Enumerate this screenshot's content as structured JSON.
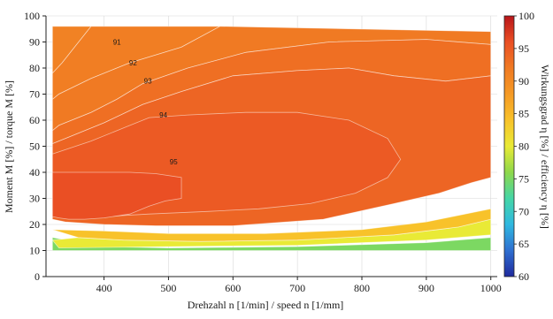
{
  "chart_data": {
    "type": "heatmap",
    "title": "",
    "xlabel": "Drehzahl n [1/min] / speed n [1/mm]",
    "ylabel": "Moment M [%] / torque M [%]",
    "colorbar_label": "Wirkungsgrad η [%] / efficiency η [%]",
    "xlim": [
      310,
      1010
    ],
    "ylim": [
      0,
      100
    ],
    "x_ticks": [
      400,
      500,
      600,
      700,
      800,
      900,
      1000
    ],
    "y_ticks": [
      0,
      10,
      20,
      30,
      40,
      50,
      60,
      70,
      80,
      90,
      100
    ],
    "colorbar_range": [
      60,
      100
    ],
    "colorbar_ticks": [
      60,
      65,
      70,
      75,
      80,
      85,
      90,
      95,
      100
    ],
    "colormap": [
      "#1f2a9e",
      "#2f6fd0",
      "#2fb8e0",
      "#45d6a6",
      "#8ed84b",
      "#e9ea36",
      "#f8c22a",
      "#f59a25",
      "#f07a23",
      "#ea4f24",
      "#b8151a"
    ],
    "grid": true,
    "contour_labels": [
      {
        "text": "91",
        "x": 420,
        "y": 89
      },
      {
        "text": "92",
        "x": 445,
        "y": 81
      },
      {
        "text": "93",
        "x": 468,
        "y": 74
      },
      {
        "text": "94",
        "x": 492,
        "y": 61
      },
      {
        "text": "95",
        "x": 508,
        "y": 43
      }
    ],
    "regions": [
      {
        "efficiency": 75,
        "boundary": [
          [
            320,
            15
          ],
          [
            320,
            10
          ],
          [
            1000,
            10
          ],
          [
            1000,
            15
          ],
          [
            900,
            13
          ],
          [
            700,
            11.5
          ],
          [
            500,
            11
          ],
          [
            400,
            11.5
          ]
        ]
      },
      {
        "efficiency": 80,
        "boundary": [
          [
            320,
            14
          ],
          [
            330,
            11
          ],
          [
            500,
            11.5
          ],
          [
            700,
            12
          ],
          [
            900,
            14
          ],
          [
            1000,
            16
          ],
          [
            1000,
            22
          ],
          [
            950,
            19
          ],
          [
            850,
            16
          ],
          [
            700,
            14
          ],
          [
            550,
            13.5
          ],
          [
            430,
            14
          ],
          [
            360,
            15
          ]
        ]
      },
      {
        "efficiency": 84,
        "boundary": [
          [
            320,
            18
          ],
          [
            360,
            15
          ],
          [
            430,
            14
          ],
          [
            550,
            13.5
          ],
          [
            700,
            14
          ],
          [
            850,
            16
          ],
          [
            950,
            19
          ],
          [
            1000,
            22
          ],
          [
            1000,
            26
          ],
          [
            960,
            24
          ],
          [
            900,
            21
          ],
          [
            800,
            18
          ],
          [
            650,
            16.5
          ],
          [
            500,
            16.5
          ],
          [
            400,
            17.5
          ]
        ]
      },
      {
        "efficiency": 91,
        "boundary": [
          [
            320,
            96
          ],
          [
            380,
            96
          ],
          [
            335,
            82
          ],
          [
            320,
            78
          ]
        ]
      },
      {
        "efficiency": 91.5,
        "boundary": [
          [
            380,
            96
          ],
          [
            580,
            96
          ],
          [
            520,
            88
          ],
          [
            440,
            82
          ],
          [
            380,
            76
          ],
          [
            330,
            70
          ],
          [
            320,
            68
          ],
          [
            320,
            78
          ],
          [
            335,
            82
          ]
        ]
      },
      {
        "efficiency": 92,
        "boundary": [
          [
            580,
            96
          ],
          [
            1000,
            94
          ],
          [
            1000,
            89
          ],
          [
            900,
            91
          ],
          [
            750,
            90
          ],
          [
            620,
            86
          ],
          [
            530,
            80
          ],
          [
            460,
            74
          ],
          [
            420,
            68
          ],
          [
            380,
            63
          ],
          [
            330,
            58
          ],
          [
            320,
            56
          ],
          [
            320,
            68
          ],
          [
            330,
            70
          ],
          [
            380,
            76
          ],
          [
            440,
            82
          ],
          [
            520,
            88
          ]
        ]
      },
      {
        "efficiency": 93,
        "boundary": [
          [
            320,
            56
          ],
          [
            330,
            58
          ],
          [
            380,
            63
          ],
          [
            420,
            68
          ],
          [
            460,
            74
          ],
          [
            530,
            80
          ],
          [
            620,
            86
          ],
          [
            750,
            90
          ],
          [
            900,
            91
          ],
          [
            1000,
            89
          ],
          [
            1000,
            77
          ],
          [
            930,
            75
          ],
          [
            850,
            77
          ],
          [
            780,
            80
          ],
          [
            700,
            79
          ],
          [
            600,
            77
          ],
          [
            520,
            71
          ],
          [
            460,
            66
          ],
          [
            400,
            59
          ],
          [
            340,
            53
          ],
          [
            320,
            51
          ]
        ]
      },
      {
        "efficiency": 94,
        "boundary": [
          [
            320,
            51
          ],
          [
            340,
            53
          ],
          [
            400,
            59
          ],
          [
            460,
            66
          ],
          [
            520,
            71
          ],
          [
            600,
            77
          ],
          [
            700,
            79
          ],
          [
            780,
            80
          ],
          [
            850,
            77
          ],
          [
            930,
            75
          ],
          [
            1000,
            77
          ],
          [
            1000,
            38
          ],
          [
            970,
            36
          ],
          [
            920,
            32
          ],
          [
            850,
            28
          ],
          [
            740,
            22
          ],
          [
            600,
            19.5
          ],
          [
            480,
            19.5
          ],
          [
            400,
            20
          ],
          [
            340,
            21
          ],
          [
            320,
            22
          ]
        ]
      },
      {
        "efficiency": 95,
        "boundary": [
          [
            320,
            47
          ],
          [
            380,
            52
          ],
          [
            430,
            57
          ],
          [
            470,
            61
          ],
          [
            530,
            62
          ],
          [
            620,
            63
          ],
          [
            700,
            63
          ],
          [
            780,
            60
          ],
          [
            840,
            53
          ],
          [
            860,
            45
          ],
          [
            840,
            38
          ],
          [
            790,
            32
          ],
          [
            720,
            28
          ],
          [
            640,
            26
          ],
          [
            560,
            25
          ],
          [
            470,
            24
          ],
          [
            400,
            23
          ],
          [
            330,
            24
          ],
          [
            320,
            25
          ]
        ]
      },
      {
        "efficiency": 96,
        "boundary": [
          [
            320,
            40
          ],
          [
            380,
            40
          ],
          [
            440,
            40
          ],
          [
            480,
            39.5
          ],
          [
            520,
            38
          ],
          [
            520,
            30
          ],
          [
            495,
            29
          ],
          [
            470,
            27
          ],
          [
            440,
            24
          ],
          [
            400,
            22.5
          ],
          [
            370,
            22
          ],
          [
            345,
            22
          ],
          [
            330,
            22.5
          ],
          [
            320,
            23
          ]
        ]
      }
    ]
  }
}
